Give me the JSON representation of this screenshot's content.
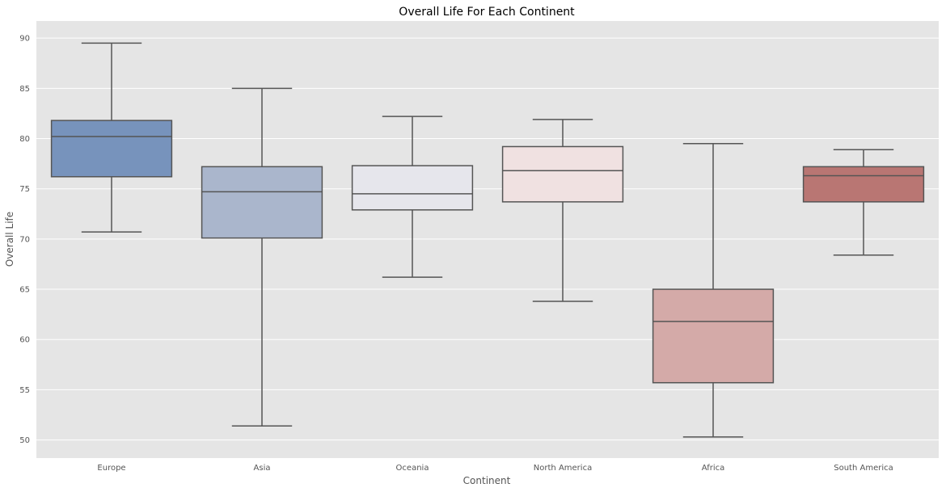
{
  "chart_data": {
    "type": "box",
    "title": "Overall Life For Each Continent",
    "xlabel": "Continent",
    "ylabel": "Overall Life",
    "ylim": [
      48.2,
      91.7
    ],
    "yticks": [
      50,
      55,
      60,
      65,
      70,
      75,
      80,
      85,
      90
    ],
    "grid": true,
    "categories": [
      "Europe",
      "Asia",
      "Oceania",
      "North America",
      "Africa",
      "South America"
    ],
    "boxes": [
      {
        "category": "Europe",
        "whisker_low": 70.7,
        "q1": 76.2,
        "median": 80.2,
        "q3": 81.8,
        "whisker_high": 89.5
      },
      {
        "category": "Asia",
        "whisker_low": 51.4,
        "q1": 70.1,
        "median": 74.7,
        "q3": 77.2,
        "whisker_high": 85.0
      },
      {
        "category": "Oceania",
        "whisker_low": 66.2,
        "q1": 72.9,
        "median": 74.5,
        "q3": 77.3,
        "whisker_high": 82.2
      },
      {
        "category": "North America",
        "whisker_low": 63.8,
        "q1": 73.7,
        "median": 76.8,
        "q3": 79.2,
        "whisker_high": 81.9
      },
      {
        "category": "Africa",
        "whisker_low": 50.3,
        "q1": 55.7,
        "median": 61.8,
        "q3": 65.0,
        "whisker_high": 79.5
      },
      {
        "category": "South America",
        "whisker_low": 68.4,
        "q1": 73.7,
        "median": 76.3,
        "q3": 77.2,
        "whisker_high": 78.9
      }
    ],
    "colors": [
      "#7793bc",
      "#aab6cc",
      "#e6e6ec",
      "#f0e1e1",
      "#d4aaa8",
      "#b97673"
    ],
    "background_color": "#e5e5e5",
    "grid_color": "#ffffff",
    "line_color": "#555555"
  }
}
